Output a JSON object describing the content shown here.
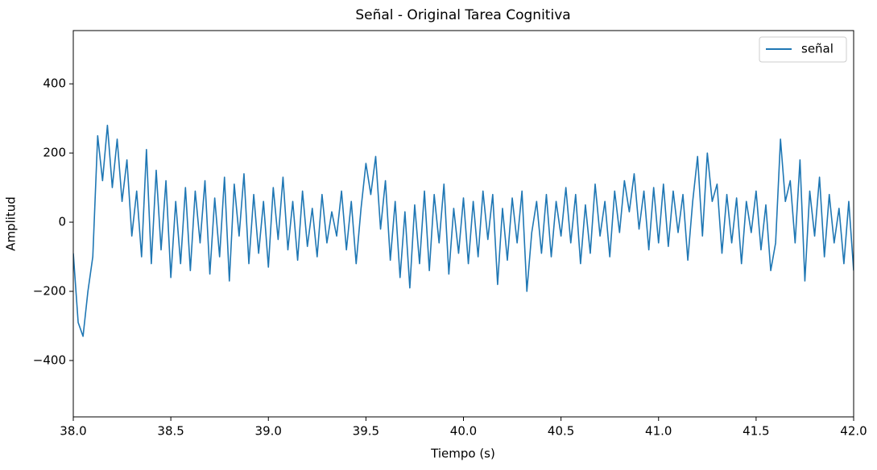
{
  "chart_data": {
    "type": "line",
    "title": "Señal - Original Tarea Cognitiva",
    "xlabel": "Tiempo (s)",
    "ylabel": "Amplitud",
    "x": [
      38,
      38.025,
      38.05,
      38.075,
      38.1,
      38.125,
      38.15,
      38.175,
      38.2,
      38.225,
      38.25,
      38.275,
      38.3,
      38.325,
      38.35,
      38.375,
      38.4,
      38.425,
      38.45,
      38.475,
      38.5,
      38.525,
      38.55,
      38.575,
      38.6,
      38.625,
      38.65,
      38.675,
      38.7,
      38.725,
      38.75,
      38.775,
      38.8,
      38.825,
      38.85,
      38.875,
      38.9,
      38.925,
      38.95,
      38.975,
      39,
      39.025,
      39.05,
      39.075,
      39.1,
      39.125,
      39.15,
      39.175,
      39.2,
      39.225,
      39.25,
      39.275,
      39.3,
      39.325,
      39.35,
      39.375,
      39.4,
      39.425,
      39.45,
      39.475,
      39.5,
      39.525,
      39.55,
      39.575,
      39.6,
      39.625,
      39.65,
      39.675,
      39.7,
      39.725,
      39.75,
      39.775,
      39.8,
      39.825,
      39.85,
      39.875,
      39.9,
      39.925,
      39.95,
      39.975,
      40,
      40.025,
      40.05,
      40.075,
      40.1,
      40.125,
      40.15,
      40.175,
      40.2,
      40.225,
      40.25,
      40.275,
      40.3,
      40.325,
      40.35,
      40.375,
      40.4,
      40.425,
      40.45,
      40.475,
      40.5,
      40.525,
      40.55,
      40.575,
      40.6,
      40.625,
      40.65,
      40.675,
      40.7,
      40.725,
      40.75,
      40.775,
      40.8,
      40.825,
      40.85,
      40.875,
      40.9,
      40.925,
      40.95,
      40.975,
      41,
      41.025,
      41.05,
      41.075,
      41.1,
      41.125,
      41.15,
      41.175,
      41.2,
      41.225,
      41.25,
      41.275,
      41.3,
      41.325,
      41.35,
      41.375,
      41.4,
      41.425,
      41.45,
      41.475,
      41.5,
      41.525,
      41.55,
      41.575,
      41.6,
      41.625,
      41.65,
      41.675,
      41.7,
      41.725,
      41.75,
      41.775,
      41.8,
      41.825,
      41.85,
      41.875,
      41.9,
      41.925,
      41.95,
      41.975,
      42
    ],
    "series": [
      {
        "name": "señal",
        "color": "#1f77b4",
        "values": [
          -90,
          -290,
          -330,
          -200,
          -100,
          250,
          120,
          280,
          100,
          240,
          60,
          180,
          -40,
          90,
          -100,
          210,
          -120,
          150,
          -80,
          120,
          -160,
          60,
          -120,
          100,
          -140,
          90,
          -60,
          120,
          -150,
          70,
          -100,
          130,
          -170,
          110,
          -40,
          140,
          -120,
          80,
          -90,
          60,
          -130,
          100,
          -50,
          130,
          -80,
          60,
          -110,
          90,
          -70,
          40,
          -100,
          80,
          -60,
          30,
          -40,
          90,
          -80,
          60,
          -120,
          40,
          170,
          80,
          190,
          -20,
          120,
          -110,
          60,
          -160,
          30,
          -190,
          50,
          -120,
          90,
          -140,
          80,
          -60,
          110,
          -150,
          40,
          -90,
          70,
          -120,
          60,
          -100,
          90,
          -50,
          80,
          -180,
          40,
          -110,
          70,
          -60,
          90,
          -200,
          -30,
          60,
          -90,
          80,
          -100,
          60,
          -40,
          100,
          -60,
          80,
          -120,
          50,
          -90,
          110,
          -40,
          60,
          -100,
          90,
          -30,
          120,
          30,
          140,
          -20,
          90,
          -80,
          100,
          -60,
          110,
          -70,
          90,
          -30,
          80,
          -110,
          60,
          190,
          -40,
          200,
          60,
          110,
          -90,
          80,
          -60,
          70,
          -120,
          60,
          -30,
          90,
          -80,
          50,
          -140,
          -60,
          240,
          60,
          120,
          -60,
          180,
          -170,
          90,
          -40,
          130,
          -100,
          80,
          -60,
          40,
          -120,
          60,
          -140
        ]
      }
    ],
    "xlim": [
      38,
      42
    ],
    "ylim": [
      -563,
      554
    ],
    "xticks": [
      {
        "value": 38,
        "label": "38.0"
      },
      38.5,
      {
        "value": 39,
        "label": "39.0"
      },
      39.5,
      {
        "value": 40,
        "label": "40.0"
      },
      40.5,
      {
        "value": 41,
        "label": "41.0"
      },
      41.5,
      {
        "value": 42,
        "label": "42.0"
      }
    ],
    "yticks": [
      {
        "value": -400,
        "label": "−400"
      },
      {
        "value": -200,
        "label": "−200"
      },
      0,
      200,
      400
    ],
    "legend": "upper right"
  }
}
